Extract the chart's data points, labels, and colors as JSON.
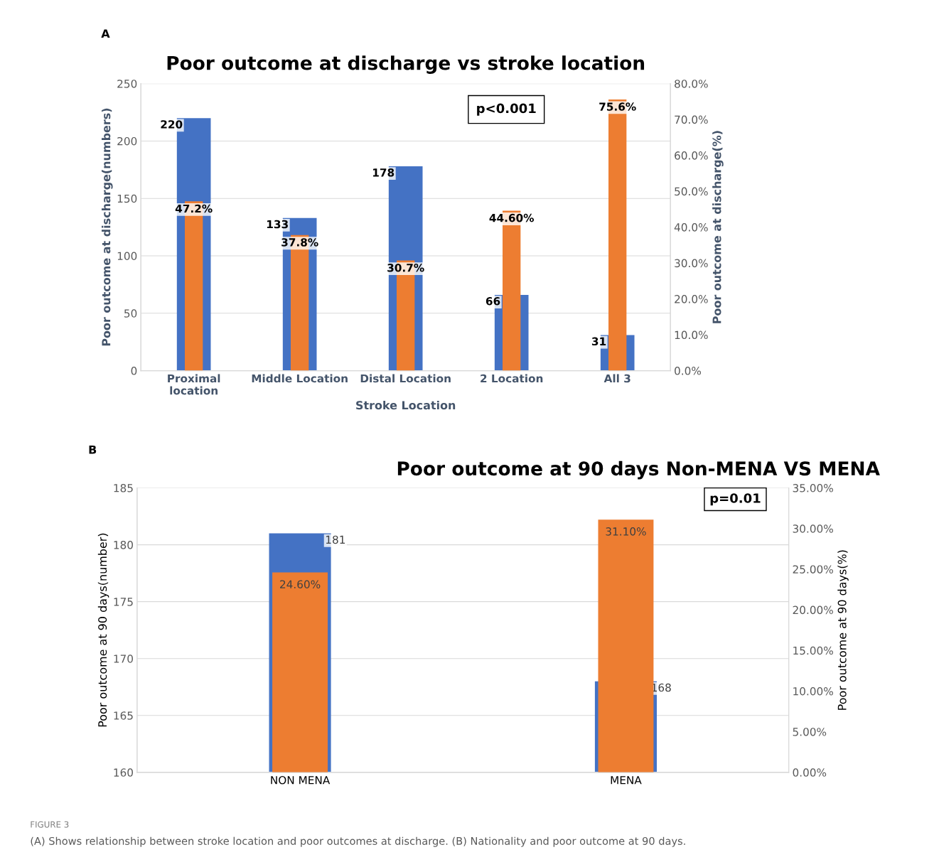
{
  "chart_data": [
    {
      "type": "bar",
      "title": "Poor outcome at discharge vs stroke location",
      "xlabel": "Stroke Location",
      "ylabel": "Poor outcome at discharge(numbers)",
      "y2label": "Poor outcome at discharge(%)",
      "categories": [
        "Proximal location",
        "Middle Location",
        "Distal Location",
        "2 Location",
        "All 3"
      ],
      "series": [
        {
          "color": "#4472c4",
          "values": [
            220,
            133,
            178,
            66,
            31
          ],
          "value_labels": [
            "220",
            "133",
            "178",
            "66",
            "31"
          ]
        },
        {
          "color": "#ed7d31",
          "axis": "y2",
          "values": [
            47.2,
            37.8,
            30.7,
            44.6,
            75.6
          ],
          "value_labels": [
            "47.2%",
            "37.8%",
            "30.7%",
            "44.60%",
            "75.6%"
          ]
        }
      ],
      "ylim": [
        0,
        250
      ],
      "yticks": [
        0,
        50,
        100,
        150,
        200,
        250
      ],
      "y2lim": [
        0,
        80
      ],
      "y2ticks": [
        {
          "value": 0,
          "label": "0.0%"
        },
        {
          "value": 10,
          "label": "10.0%"
        },
        {
          "value": 20,
          "label": "20.0%"
        },
        {
          "value": 30,
          "label": "30.0%"
        },
        {
          "value": 40,
          "label": "40.0%"
        },
        {
          "value": 50,
          "label": "50.0%"
        },
        {
          "value": 60,
          "label": "60.0%"
        },
        {
          "value": 70,
          "label": "70.0%"
        },
        {
          "value": 80,
          "label": "80.0%"
        }
      ],
      "grid": "y",
      "legend": false,
      "annotations": [
        "A",
        "p<0.001"
      ]
    },
    {
      "type": "bar",
      "title": "Poor outcome at 90 days Non-MENA VS MENA",
      "ylabel": "Poor outcome at 90 days(number)",
      "y2label": "Poor outcome at 90 days(%)",
      "categories": [
        "NON MENA",
        "MENA"
      ],
      "series": [
        {
          "color": "#4472c4",
          "values": [
            181,
            168
          ],
          "value_labels": [
            "181",
            "168"
          ]
        },
        {
          "color": "#ed7d31",
          "axis": "y2",
          "values": [
            24.6,
            31.1
          ],
          "value_labels": [
            "24.60%",
            "31.10%"
          ]
        }
      ],
      "ylim": [
        160,
        185
      ],
      "yticks": [
        160,
        165,
        170,
        175,
        180,
        185
      ],
      "y2lim": [
        0,
        35
      ],
      "y2ticks": [
        {
          "value": 0,
          "label": "0.00%"
        },
        {
          "value": 5,
          "label": "5.00%"
        },
        {
          "value": 10,
          "label": "10.00%"
        },
        {
          "value": 15,
          "label": "15.00%"
        },
        {
          "value": 20,
          "label": "20.00%"
        },
        {
          "value": 25,
          "label": "25.00%"
        },
        {
          "value": 30,
          "label": "30.00%"
        },
        {
          "value": 35,
          "label": "35.00%"
        }
      ],
      "grid": "y",
      "legend": false,
      "annotations": [
        "B",
        "p=0.01",
        "FIGURE 3",
        "(A) Shows relationship between stroke location and poor outcomes at discharge. (B) Nationality and poor outcome at 90 days."
      ]
    }
  ]
}
